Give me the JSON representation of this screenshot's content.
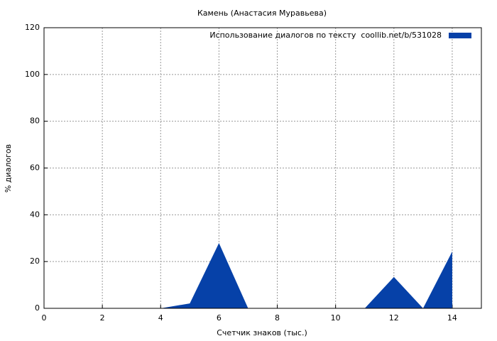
{
  "chart_data": {
    "type": "area",
    "title": "Камень (Анастасия Муравьева)",
    "xlabel": "Счетчик знаков (тыс.)",
    "ylabel": "% диалогов",
    "x": [
      0,
      1,
      2,
      3,
      4,
      5,
      6,
      7,
      8,
      9,
      10,
      11,
      12,
      13,
      14
    ],
    "series": [
      {
        "name": "Использование диалогов по тексту  coollib.net/b/531028",
        "color": "#0641a8",
        "values": [
          0,
          0,
          0,
          0,
          0,
          2.1,
          27.9,
          0,
          0,
          0,
          0,
          0,
          13.4,
          0,
          24.3
        ]
      }
    ],
    "xlim": [
      0,
      15
    ],
    "xticks": [
      0,
      2,
      4,
      6,
      8,
      10,
      12,
      14
    ],
    "ylim": [
      0,
      120
    ],
    "yticks": [
      0,
      20,
      40,
      60,
      80,
      100,
      120
    ],
    "grid": true,
    "legend": "upper right"
  }
}
